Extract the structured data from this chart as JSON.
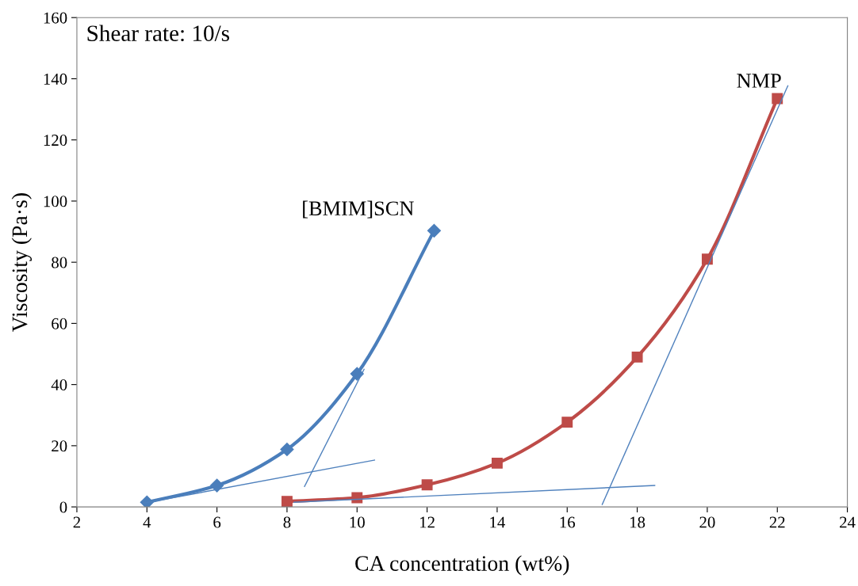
{
  "chart_data": {
    "type": "line",
    "xlabel": "CA concentration (wt%)",
    "ylabel": "Viscosity (Pa·s)",
    "annotations": [
      "Shear rate: 10/s"
    ],
    "xlim": [
      2,
      24
    ],
    "xticks": [
      2,
      4,
      6,
      8,
      10,
      12,
      14,
      16,
      18,
      20,
      22,
      24
    ],
    "ylim": [
      0,
      160
    ],
    "yticks": [
      0,
      20,
      40,
      60,
      80,
      100,
      120,
      140,
      160
    ],
    "grid": false,
    "legend": false,
    "line_style": "solid",
    "series": [
      {
        "name": "[BMIM]SCN",
        "color": "#4a7ebb",
        "marker": "diamond",
        "x": [
          4,
          6,
          8,
          10,
          12.2
        ],
        "values": [
          1.5,
          7,
          18.8,
          43.5,
          90.3
        ]
      },
      {
        "name": "NMP",
        "color": "#be4b48",
        "marker": "square",
        "x": [
          8,
          10,
          12,
          14,
          16,
          18,
          20,
          22
        ],
        "values": [
          1.8,
          3,
          7.2,
          14.3,
          27.7,
          49,
          81,
          133.5
        ]
      },
      {
        "color": "#4f81bd",
        "marker": "none",
        "x": [
          3.9,
          10.5
        ],
        "values": [
          1.2,
          15.3
        ]
      },
      {
        "color": "#4f81bd",
        "marker": "none",
        "x": [
          8.5,
          10.2
        ],
        "values": [
          6.7,
          45
        ]
      },
      {
        "color": "#4f81bd",
        "marker": "none",
        "x": [
          8.2,
          18.5
        ],
        "values": [
          1.5,
          7
        ]
      },
      {
        "color": "#4f81bd",
        "marker": "none",
        "x": [
          17,
          22.3
        ],
        "values": [
          0.8,
          137.7
        ]
      }
    ]
  }
}
